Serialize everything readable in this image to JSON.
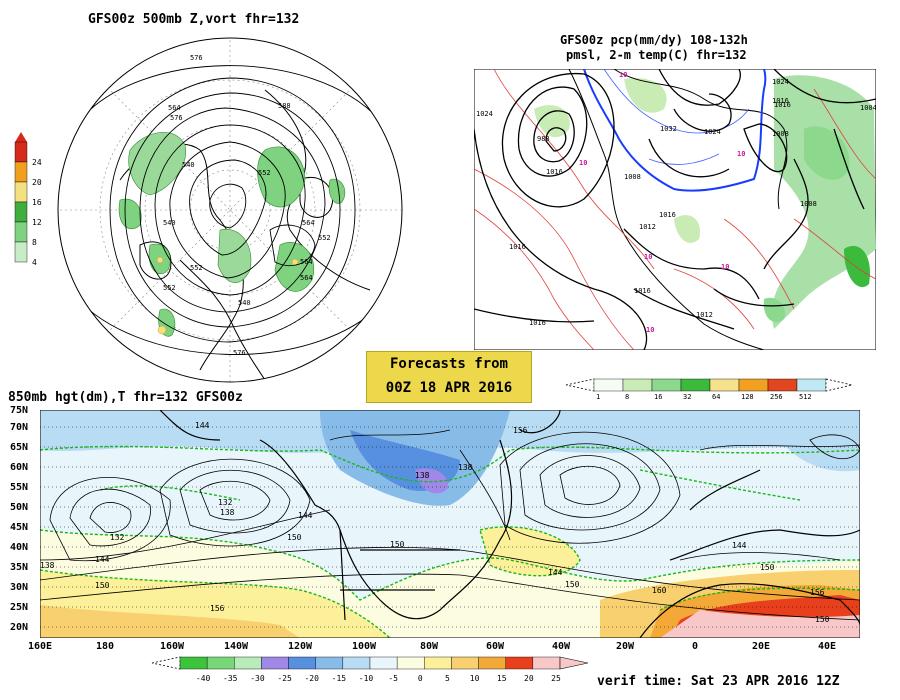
{
  "polar": {
    "title": "GFS00z  500mb Z,vort   fhr=132",
    "contour_labels": [
      "576",
      "564",
      "588",
      "540",
      "552",
      "540",
      "564",
      "552",
      "564",
      "552",
      "540",
      "552",
      "564",
      "576",
      "576"
    ],
    "colorbar": {
      "ticks": [
        "24",
        "20",
        "16",
        "12",
        "8",
        "4"
      ],
      "colors": [
        "#d62a1a",
        "#f0a01e",
        "#f4e080",
        "#3fae3f",
        "#7fd27f",
        "#c8ecc8"
      ]
    }
  },
  "qpf": {
    "title_line1": "GFS00z pcp(mm/dy) 108-132h",
    "title_line2": "pmsl, 2-m temp(C)  fhr=132",
    "contour_labels": [
      "1024",
      "988",
      "1016",
      "1032",
      "1024",
      "1016",
      "1008",
      "1008",
      "1016",
      "1012",
      "1016",
      "1016",
      "1016",
      "1012",
      "1024",
      "1016",
      "1008",
      "1004"
    ],
    "temp_labels": [
      "10",
      "10",
      "10",
      "10",
      "10",
      "10"
    ],
    "colorbar": {
      "ticks": [
        "1",
        "8",
        "16",
        "32",
        "64",
        "128",
        "256",
        "512"
      ],
      "colors": [
        "#f4fcf4",
        "#c8ecb4",
        "#8cd88c",
        "#3cba3c",
        "#f6e28c",
        "#f2a020",
        "#e2461e",
        "#bfeaf4"
      ]
    }
  },
  "forecast": {
    "line1": "Forecasts from",
    "line2": "00Z 18 APR 2016"
  },
  "h850": {
    "title": "850mb hgt(dm),T   fhr=132 GFS00z",
    "lat_labels": [
      "75N",
      "70N",
      "65N",
      "60N",
      "55N",
      "50N",
      "45N",
      "40N",
      "35N",
      "30N",
      "25N",
      "20N"
    ],
    "lon_labels": [
      "160E",
      "180",
      "160W",
      "140W",
      "120W",
      "100W",
      "80W",
      "60W",
      "40W",
      "20W",
      "0",
      "20E",
      "40E"
    ],
    "contour_labels": [
      "144",
      "132",
      "138",
      "132",
      "138",
      "144",
      "150",
      "144",
      "150",
      "156",
      "138",
      "138",
      "156",
      "150",
      "144",
      "150",
      "160",
      "144",
      "150",
      "156",
      "150"
    ],
    "colorbar": {
      "ticks": [
        "-40",
        "-35",
        "-30",
        "-25",
        "-20",
        "-15",
        "-10",
        "-5",
        "0",
        "5",
        "10",
        "15",
        "20",
        "25"
      ],
      "colors": [
        "#3cc43c",
        "#78d878",
        "#b8ecb8",
        "#a088e8",
        "#5890e0",
        "#88bce8",
        "#b8dcf4",
        "#e8f6fc",
        "#fcfce0",
        "#fcf09a",
        "#f8d070",
        "#f4a838",
        "#e8401c",
        "#f8c8c8"
      ]
    }
  },
  "verif": "verif time: Sat 23 APR 2016 12Z"
}
